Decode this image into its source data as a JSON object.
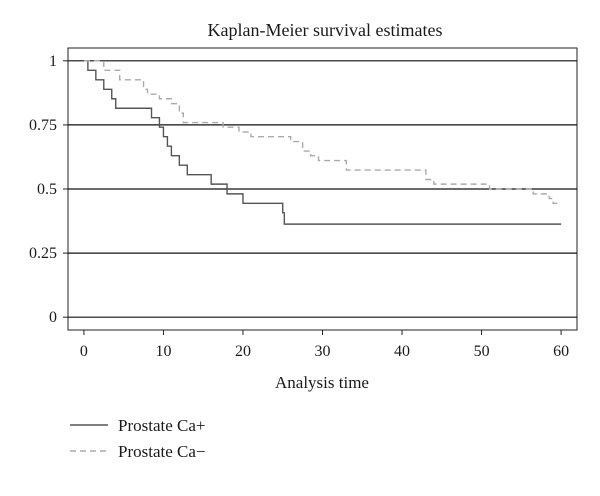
{
  "chart_data": {
    "type": "line",
    "step": true,
    "title": "Kaplan-Meier survival estimates",
    "xlabel": "Analysis time",
    "ylabel": "",
    "xlim": [
      -2,
      62
    ],
    "ylim": [
      -0.05,
      1.05
    ],
    "x_ticks": [
      0,
      10,
      20,
      30,
      40,
      50,
      60
    ],
    "y_ticks": [
      0,
      0.25,
      0.5,
      0.75,
      1
    ],
    "y_tick_labels": [
      "0",
      "0.25",
      "0.5",
      "0.75",
      "1"
    ],
    "grid": "horizontal lines at y ticks",
    "legend_position": "bottom-left",
    "series": [
      {
        "name": "Prostate Ca+",
        "line_style": "solid",
        "color": "#555555",
        "points": [
          [
            0,
            1
          ],
          [
            0.5,
            1
          ],
          [
            0.5,
            0.963
          ],
          [
            1.5,
            0.963
          ],
          [
            1.5,
            0.926
          ],
          [
            2.5,
            0.926
          ],
          [
            2.5,
            0.889
          ],
          [
            3.5,
            0.889
          ],
          [
            3.5,
            0.852
          ],
          [
            4,
            0.852
          ],
          [
            4,
            0.815
          ],
          [
            8.5,
            0.815
          ],
          [
            8.5,
            0.778
          ],
          [
            9.5,
            0.778
          ],
          [
            9.5,
            0.741
          ],
          [
            10,
            0.741
          ],
          [
            10,
            0.704
          ],
          [
            10.5,
            0.704
          ],
          [
            10.5,
            0.667
          ],
          [
            11,
            0.667
          ],
          [
            11,
            0.63
          ],
          [
            12,
            0.63
          ],
          [
            12,
            0.593
          ],
          [
            13,
            0.593
          ],
          [
            13,
            0.556
          ],
          [
            16,
            0.556
          ],
          [
            16,
            0.519
          ],
          [
            18,
            0.519
          ],
          [
            18,
            0.481
          ],
          [
            20,
            0.481
          ],
          [
            20,
            0.444
          ],
          [
            25,
            0.444
          ],
          [
            25,
            0.407
          ],
          [
            25.2,
            0.407
          ],
          [
            25.2,
            0.363
          ],
          [
            60,
            0.363
          ]
        ]
      },
      {
        "name": "Prostate Ca−",
        "line_style": "dashed",
        "color": "#aaaaaa",
        "points": [
          [
            0,
            1
          ],
          [
            2.5,
            1
          ],
          [
            2.5,
            0.963
          ],
          [
            4.5,
            0.963
          ],
          [
            4.5,
            0.926
          ],
          [
            7.5,
            0.926
          ],
          [
            7.5,
            0.889
          ],
          [
            8,
            0.889
          ],
          [
            8,
            0.87
          ],
          [
            9.5,
            0.87
          ],
          [
            9.5,
            0.852
          ],
          [
            11,
            0.852
          ],
          [
            11,
            0.833
          ],
          [
            12,
            0.833
          ],
          [
            12,
            0.796
          ],
          [
            12.5,
            0.796
          ],
          [
            12.5,
            0.759
          ],
          [
            17.5,
            0.759
          ],
          [
            17.5,
            0.741
          ],
          [
            19.5,
            0.741
          ],
          [
            19.5,
            0.722
          ],
          [
            21,
            0.722
          ],
          [
            21,
            0.704
          ],
          [
            26,
            0.704
          ],
          [
            26,
            0.685
          ],
          [
            27.5,
            0.685
          ],
          [
            27.5,
            0.648
          ],
          [
            28.5,
            0.648
          ],
          [
            28.5,
            0.63
          ],
          [
            29.5,
            0.63
          ],
          [
            29.5,
            0.611
          ],
          [
            33,
            0.611
          ],
          [
            33,
            0.574
          ],
          [
            43,
            0.574
          ],
          [
            43,
            0.537
          ],
          [
            44,
            0.537
          ],
          [
            44,
            0.519
          ],
          [
            51,
            0.519
          ],
          [
            51,
            0.5
          ],
          [
            56.5,
            0.5
          ],
          [
            56.5,
            0.481
          ],
          [
            58.5,
            0.481
          ],
          [
            58.5,
            0.463
          ],
          [
            59,
            0.463
          ],
          [
            59,
            0.444
          ],
          [
            60,
            0.444
          ]
        ]
      }
    ]
  }
}
